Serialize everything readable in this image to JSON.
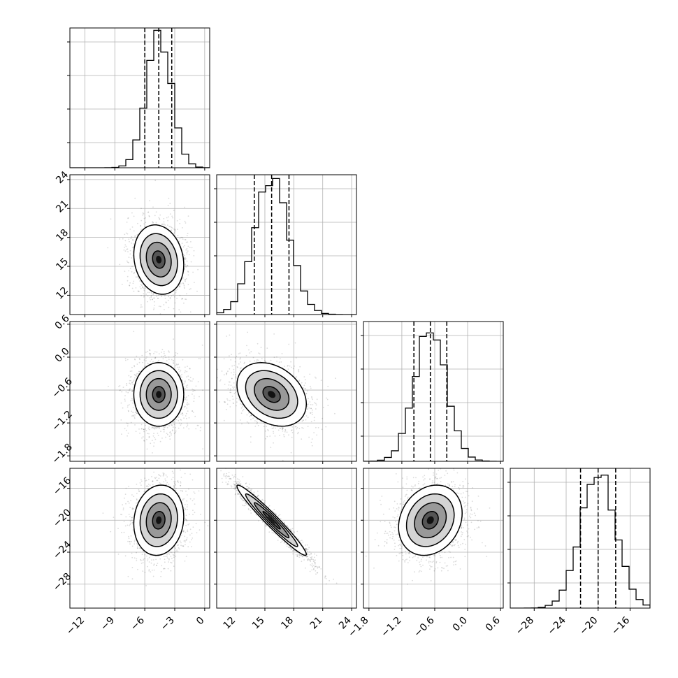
{
  "chart_data": {
    "type": "corner",
    "grid": true,
    "parameters": [
      {
        "range": [
          -13.5,
          0.5
        ],
        "ticks": [
          -12,
          -9,
          -6,
          -3,
          0
        ],
        "tick_labels": [
          "−12",
          "−9",
          "−6",
          "−3",
          "0"
        ],
        "mean": -4.6,
        "sd": 1.25,
        "quantiles": [
          -6.0,
          -4.6,
          -3.3
        ],
        "hist_peak": 0.96
      },
      {
        "range": [
          10.0,
          24.5
        ],
        "ticks": [
          12,
          15,
          18,
          21,
          24
        ],
        "tick_labels": [
          "12",
          "15",
          "18",
          "21",
          "24"
        ],
        "mean": 15.7,
        "sd": 1.8,
        "quantiles": [
          13.9,
          15.7,
          17.5
        ],
        "hist_peak": 0.98
      },
      {
        "range": [
          -1.9,
          0.65
        ],
        "ticks": [
          -1.8,
          -1.2,
          -0.6,
          0.0,
          0.6
        ],
        "tick_labels": [
          "−1.8",
          "−1.2",
          "−0.6",
          "0.0",
          "0.6"
        ],
        "mean": -0.68,
        "sd": 0.29,
        "quantiles": [
          -0.98,
          -0.68,
          -0.38
        ],
        "hist_peak": 0.95
      },
      {
        "range": [
          -31.0,
          -13.5
        ],
        "ticks": [
          -28,
          -24,
          -20,
          -16
        ],
        "tick_labels": [
          "−28",
          "−24",
          "−20",
          "−16"
        ],
        "mean": -20.0,
        "sd": 2.2,
        "quantiles": [
          -22.2,
          -20.0,
          -17.8
        ],
        "hist_peak": 0.97
      }
    ],
    "correlations": [
      [
        1.0,
        -0.15,
        0.0,
        0.1
      ],
      [
        -0.15,
        1.0,
        -0.3,
        -0.97
      ],
      [
        0.0,
        -0.3,
        1.0,
        0.2
      ],
      [
        0.1,
        -0.97,
        0.2,
        1.0
      ]
    ],
    "contour_levels_sigma": [
      0.5,
      1.0,
      1.5,
      2.0
    ]
  }
}
